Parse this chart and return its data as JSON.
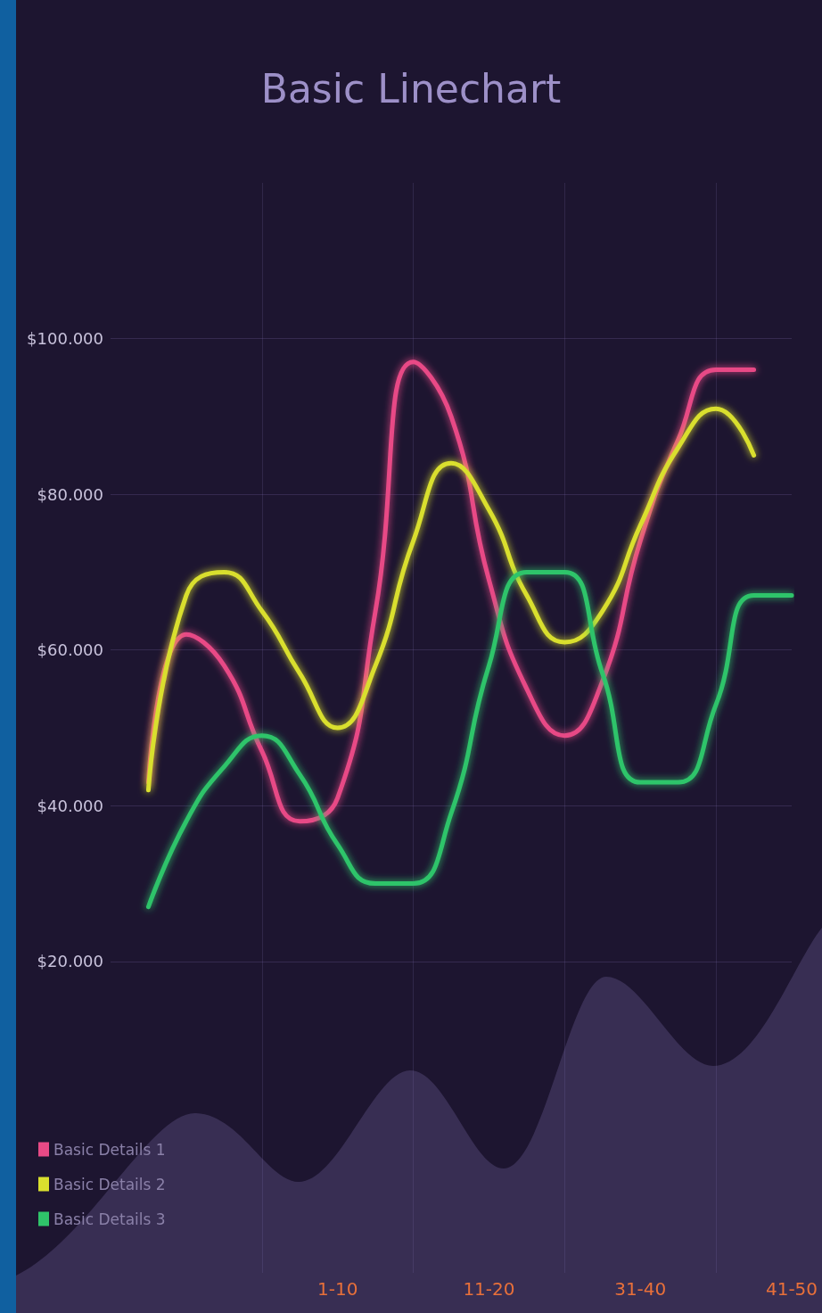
{
  "chart_data": {
    "type": "line",
    "title": "Basic Linechart",
    "categories": [
      null,
      null,
      null,
      null,
      null,
      null,
      "1-10",
      null,
      null,
      null,
      "11-20",
      null,
      null,
      null,
      "31-40",
      null,
      null,
      null,
      "41-50"
    ],
    "series": [
      {
        "name": "Basic Details 1",
        "color": "#e84a86",
        "values": [
          null,
          43000,
          62000,
          58000,
          47000,
          38000,
          41000,
          65000,
          97000,
          90000,
          69000,
          55000,
          49000,
          56000,
          74000,
          87000,
          96000,
          96000,
          null
        ]
      },
      {
        "name": "Basic Details 2",
        "color": "#d9df2e",
        "values": [
          null,
          42000,
          67000,
          70000,
          65000,
          57000,
          50000,
          58000,
          74000,
          84000,
          78000,
          67000,
          61000,
          65000,
          76000,
          86000,
          91000,
          85000,
          null
        ]
      },
      {
        "name": "Basic Details 3",
        "color": "#2fc46a",
        "values": [
          null,
          27000,
          38000,
          45000,
          49000,
          44000,
          35000,
          30000,
          30000,
          39000,
          58000,
          70000,
          70000,
          57000,
          43000,
          43000,
          53000,
          67000,
          67000
        ]
      }
    ],
    "ylim": [
      -20000,
      120000
    ],
    "yticks": [
      {
        "value": 20000,
        "label": "$20.000"
      },
      {
        "value": 40000,
        "label": "$40.000"
      },
      {
        "value": 60000,
        "label": "$60.000"
      },
      {
        "value": 80000,
        "label": "$80.000"
      },
      {
        "value": 100000,
        "label": "$100.000"
      }
    ],
    "grid": true,
    "legend": "bottom left"
  }
}
